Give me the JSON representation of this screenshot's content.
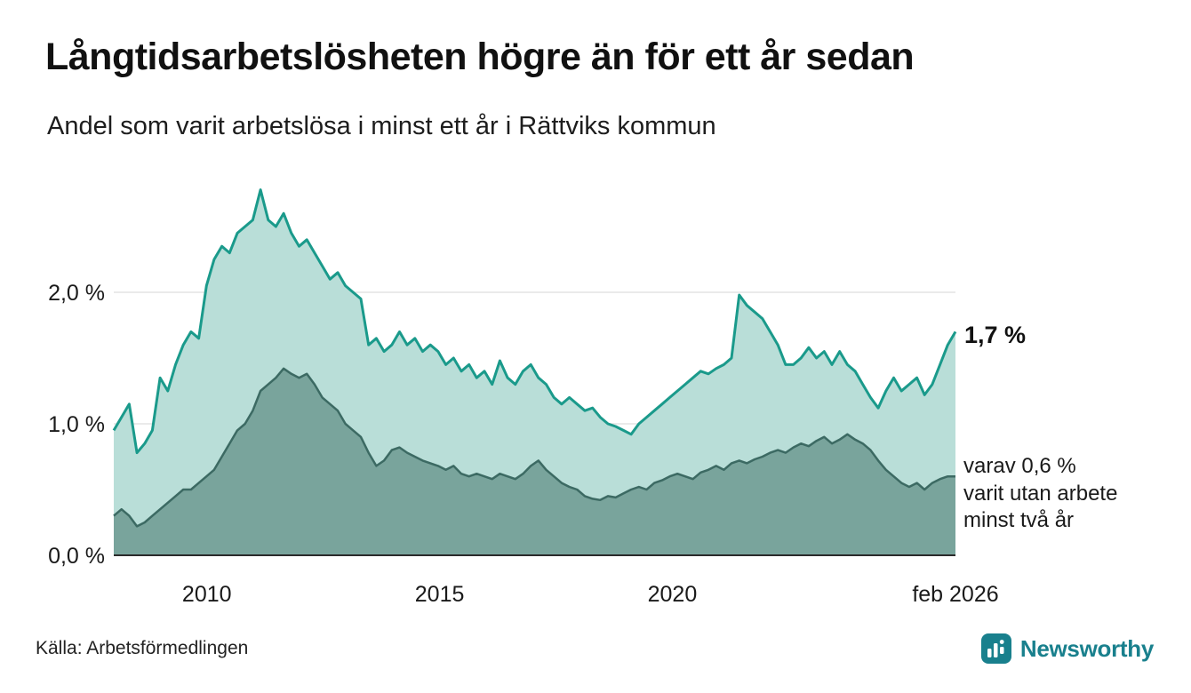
{
  "header": {
    "title": "Långtidsarbetslösheten högre än för ett år sedan",
    "subtitle": "Andel som varit arbetslösa i minst ett år i Rättviks kommun"
  },
  "annotations": {
    "end_value_total": "1,7 %",
    "end_note_line1": "varav 0,6 %",
    "end_note_line2": "varit utan arbete",
    "end_note_line3": "minst två år"
  },
  "footer": {
    "source": "Källa: Arbetsförmedlingen",
    "brand": "Newsworthy"
  },
  "colors": {
    "line_total": "#1a9a8b",
    "fill_total": "#b9ded8",
    "line_two_years": "#3c6a63",
    "fill_two_years": "#79a49c",
    "grid": "#e3e3e3",
    "baseline": "#2b2b2b",
    "axis_text": "#1a1a1a",
    "brand_teal": "#19808d"
  },
  "chart_data": {
    "type": "area",
    "title": "Långtidsarbetslösheten högre än för ett år sedan",
    "subtitle": "Andel som varit arbetslösa i minst ett år i Rättviks kommun",
    "unit": "%",
    "x_range": [
      2008.0,
      2026.083
    ],
    "ylim": [
      0,
      2.9
    ],
    "grid": true,
    "yticks": [
      {
        "value": 0,
        "label": "0,0 %"
      },
      {
        "value": 1,
        "label": "1,0 %"
      },
      {
        "value": 2,
        "label": "2,0 %"
      }
    ],
    "xticks": [
      {
        "value": 2010,
        "label": "2010"
      },
      {
        "value": 2015,
        "label": "2015"
      },
      {
        "value": 2020,
        "label": "2020"
      },
      {
        "value": 2026.083,
        "label": "feb 2026"
      }
    ],
    "series": [
      {
        "name": "Arbetslösa minst ett år",
        "end_value": 1.7,
        "end_label": "1,7 %",
        "values": [
          0.95,
          1.05,
          1.15,
          0.78,
          0.85,
          0.95,
          1.35,
          1.25,
          1.45,
          1.6,
          1.7,
          1.65,
          2.05,
          2.25,
          2.35,
          2.3,
          2.45,
          2.5,
          2.55,
          2.78,
          2.55,
          2.5,
          2.6,
          2.45,
          2.35,
          2.4,
          2.3,
          2.2,
          2.1,
          2.15,
          2.05,
          2.0,
          1.95,
          1.6,
          1.65,
          1.55,
          1.6,
          1.7,
          1.6,
          1.65,
          1.55,
          1.6,
          1.55,
          1.45,
          1.5,
          1.4,
          1.45,
          1.35,
          1.4,
          1.3,
          1.48,
          1.35,
          1.3,
          1.4,
          1.45,
          1.35,
          1.3,
          1.2,
          1.15,
          1.2,
          1.15,
          1.1,
          1.12,
          1.05,
          1.0,
          0.98,
          0.95,
          0.92,
          1.0,
          1.05,
          1.1,
          1.15,
          1.2,
          1.25,
          1.3,
          1.35,
          1.4,
          1.38,
          1.42,
          1.45,
          1.5,
          1.98,
          1.9,
          1.85,
          1.8,
          1.7,
          1.6,
          1.45,
          1.45,
          1.5,
          1.58,
          1.5,
          1.55,
          1.45,
          1.55,
          1.45,
          1.4,
          1.3,
          1.2,
          1.12,
          1.25,
          1.35,
          1.25,
          1.3,
          1.35,
          1.22,
          1.3,
          1.45,
          1.6,
          1.7
        ]
      },
      {
        "name": "Utan arbete minst två år",
        "end_value": 0.6,
        "end_label": "0,6 %",
        "values": [
          0.3,
          0.35,
          0.3,
          0.22,
          0.25,
          0.3,
          0.35,
          0.4,
          0.45,
          0.5,
          0.5,
          0.55,
          0.6,
          0.65,
          0.75,
          0.85,
          0.95,
          1.0,
          1.1,
          1.25,
          1.3,
          1.35,
          1.42,
          1.38,
          1.35,
          1.38,
          1.3,
          1.2,
          1.15,
          1.1,
          1.0,
          0.95,
          0.9,
          0.78,
          0.68,
          0.72,
          0.8,
          0.82,
          0.78,
          0.75,
          0.72,
          0.7,
          0.68,
          0.65,
          0.68,
          0.62,
          0.6,
          0.62,
          0.6,
          0.58,
          0.62,
          0.6,
          0.58,
          0.62,
          0.68,
          0.72,
          0.65,
          0.6,
          0.55,
          0.52,
          0.5,
          0.45,
          0.43,
          0.42,
          0.45,
          0.44,
          0.47,
          0.5,
          0.52,
          0.5,
          0.55,
          0.57,
          0.6,
          0.62,
          0.6,
          0.58,
          0.63,
          0.65,
          0.68,
          0.65,
          0.7,
          0.72,
          0.7,
          0.73,
          0.75,
          0.78,
          0.8,
          0.78,
          0.82,
          0.85,
          0.83,
          0.87,
          0.9,
          0.85,
          0.88,
          0.92,
          0.88,
          0.85,
          0.8,
          0.72,
          0.65,
          0.6,
          0.55,
          0.52,
          0.55,
          0.5,
          0.55,
          0.58,
          0.6,
          0.6
        ]
      }
    ]
  }
}
